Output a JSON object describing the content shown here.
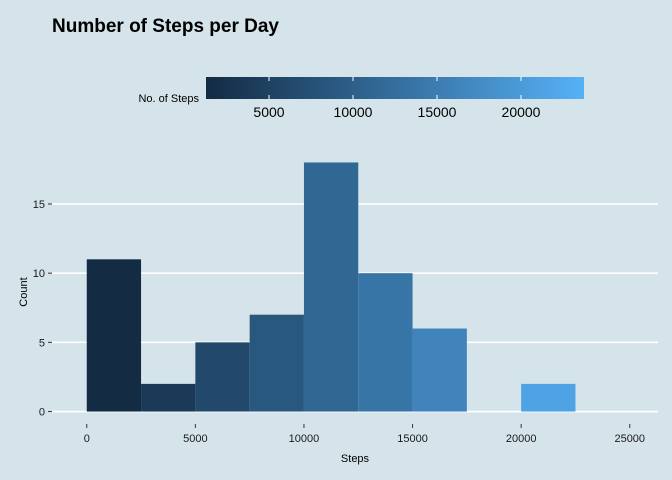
{
  "chart_data": {
    "type": "bar",
    "title": "Number of Steps per Day",
    "xlabel": "Steps",
    "ylabel": "Count",
    "bins": [
      {
        "x0": 0,
        "x1": 2500,
        "count": 11
      },
      {
        "x0": 2500,
        "x1": 5000,
        "count": 2
      },
      {
        "x0": 5000,
        "x1": 7500,
        "count": 5
      },
      {
        "x0": 7500,
        "x1": 10000,
        "count": 7
      },
      {
        "x0": 10000,
        "x1": 12500,
        "count": 18
      },
      {
        "x0": 12500,
        "x1": 15000,
        "count": 10
      },
      {
        "x0": 15000,
        "x1": 17500,
        "count": 6
      },
      {
        "x0": 17500,
        "x1": 20000,
        "count": 0
      },
      {
        "x0": 20000,
        "x1": 22500,
        "count": 2
      },
      {
        "x0": 22500,
        "x1": 25000,
        "count": 0
      }
    ],
    "xlim": [
      -1600,
      26300
    ],
    "ylim": [
      -0.9,
      18.9
    ],
    "x_ticks": [
      0,
      5000,
      10000,
      15000,
      20000,
      25000
    ],
    "x_tick_labels": [
      "0",
      "5000",
      "10000",
      "15000",
      "20000",
      "25000"
    ],
    "y_ticks": [
      0,
      5,
      10,
      15
    ],
    "y_tick_labels": [
      "0",
      "5",
      "10",
      "15"
    ],
    "grid": "horizontal major lines only",
    "legend": {
      "title": "No. of Steps",
      "placement": "top",
      "range": [
        1250,
        23750
      ],
      "ticks": [
        5000,
        10000,
        15000,
        20000
      ],
      "tick_labels": [
        "5000",
        "10000",
        "15000",
        "20000"
      ],
      "color_low": "#132b43",
      "color_high": "#56b1f7"
    }
  }
}
